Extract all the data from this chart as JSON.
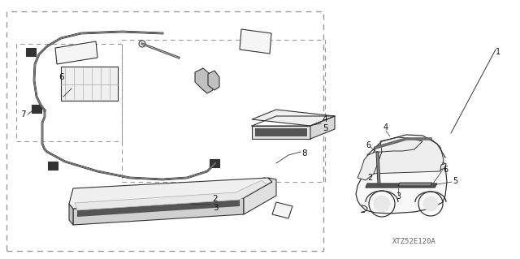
{
  "bg_color": "#ffffff",
  "line_color": "#333333",
  "dark_color": "#555555",
  "dashed_color": "#888888",
  "watermark": "XTZ52E120A",
  "fig_w": 6.4,
  "fig_h": 3.19
}
